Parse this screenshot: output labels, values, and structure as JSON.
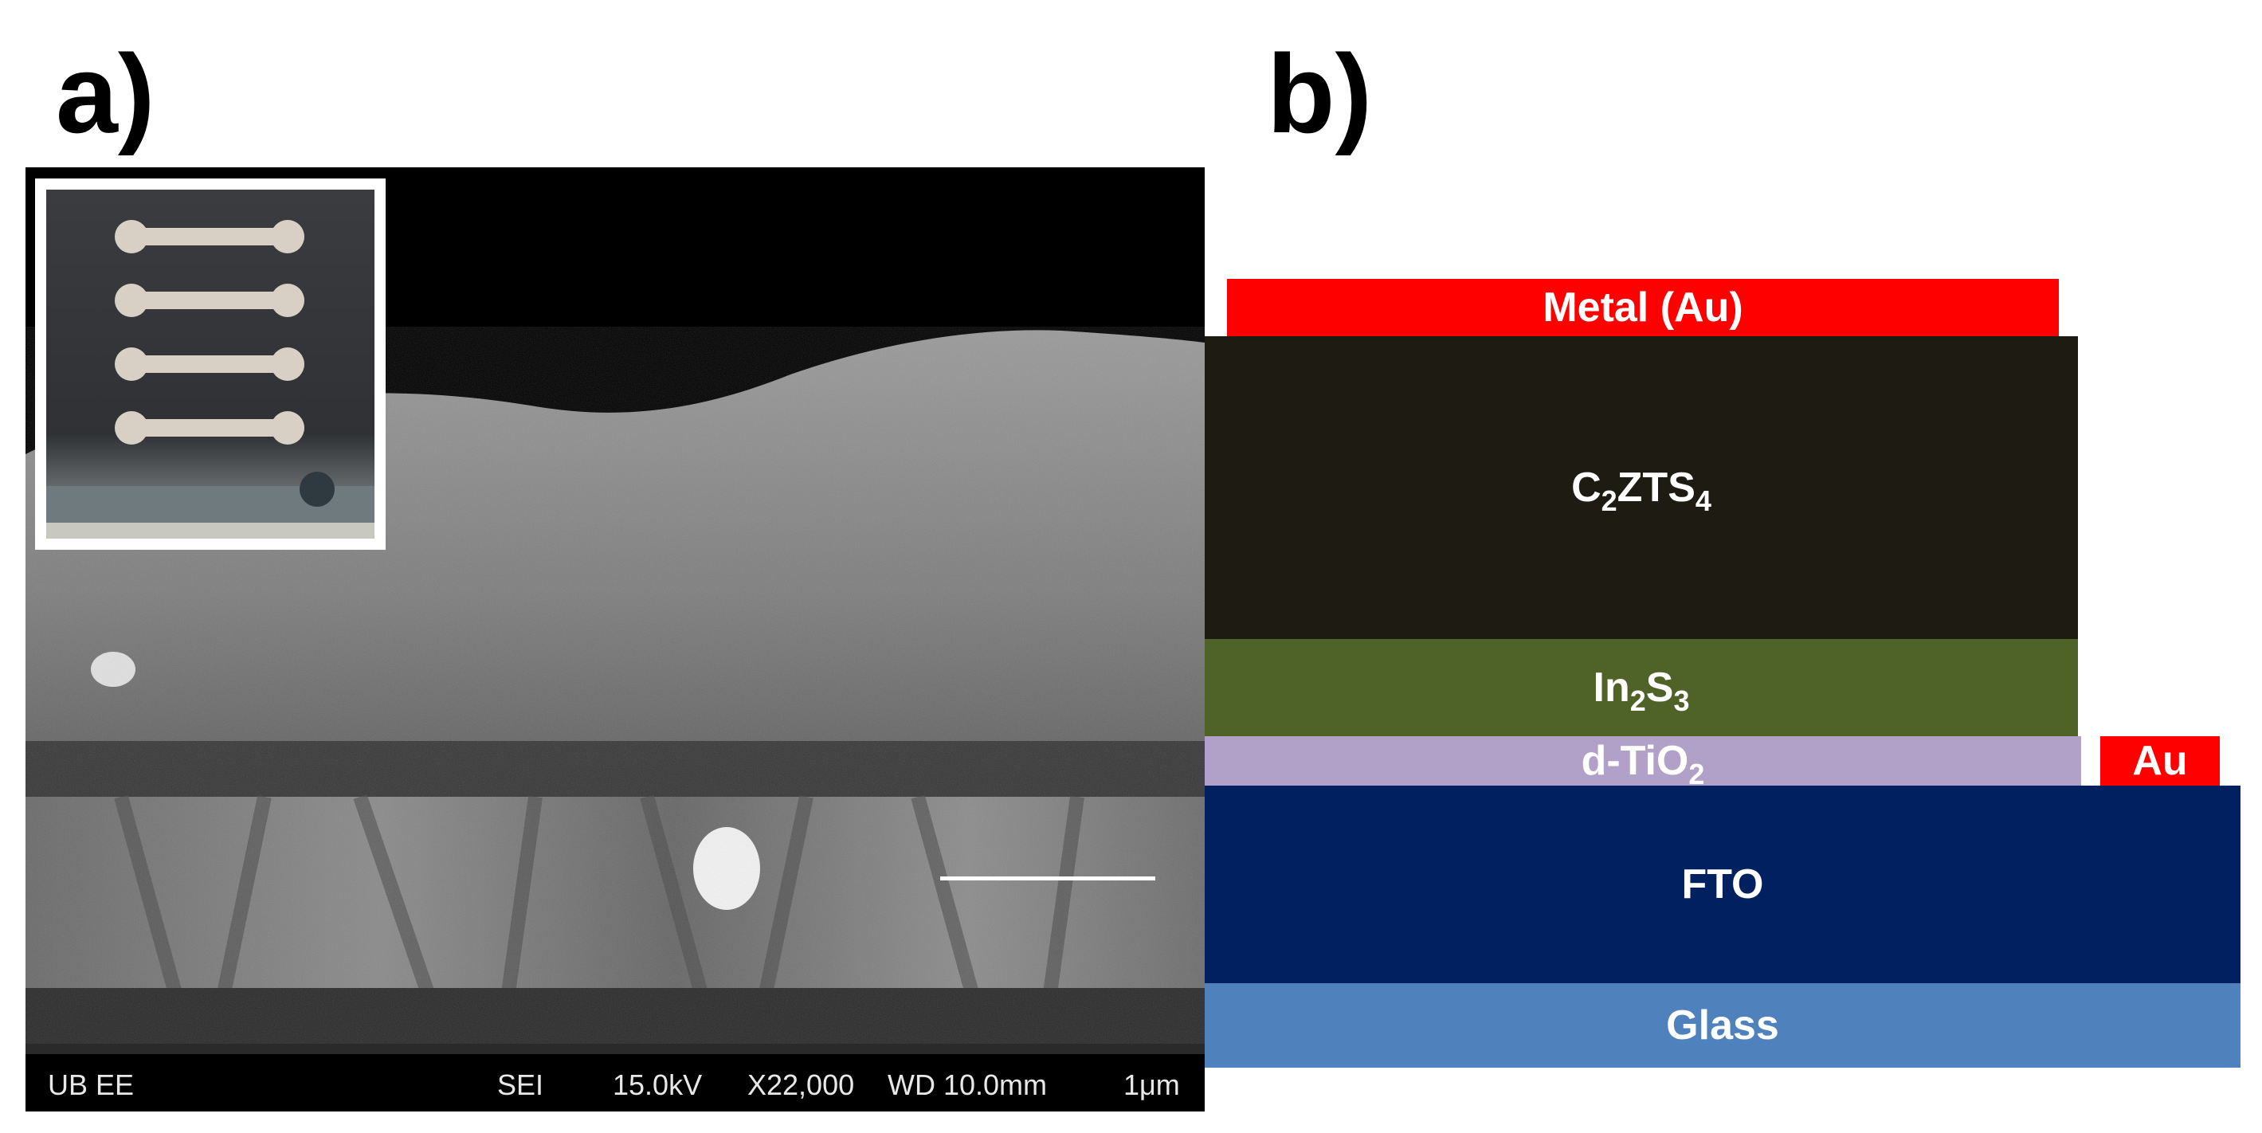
{
  "panels": {
    "a_label": "a)",
    "b_label": "b)"
  },
  "sem_footer": {
    "lab": "UB EE",
    "mode": "SEI",
    "voltage": "15.0kV",
    "magnification": "X22,000",
    "working_distance": "WD 10.0mm",
    "scale": "1μm"
  },
  "layers": {
    "metal": "Metal (Au)",
    "czts_main": "C",
    "czts_sub1": "2",
    "czts_mid": "ZTS",
    "czts_sub2": "4",
    "in2s3_main": "In",
    "in2s3_sub1": "2",
    "in2s3_mid": "S",
    "in2s3_sub2": "3",
    "tio2_main": "d-TiO",
    "tio2_sub": "2",
    "au_contact": "Au",
    "fto": "FTO",
    "glass": "Glass"
  },
  "colors": {
    "metal": "#ff0000",
    "czts": "#1e1c12",
    "in2s3": "#4f6228",
    "tio2": "#b1a0c7",
    "fto": "#002060",
    "glass": "#4f81bd"
  }
}
